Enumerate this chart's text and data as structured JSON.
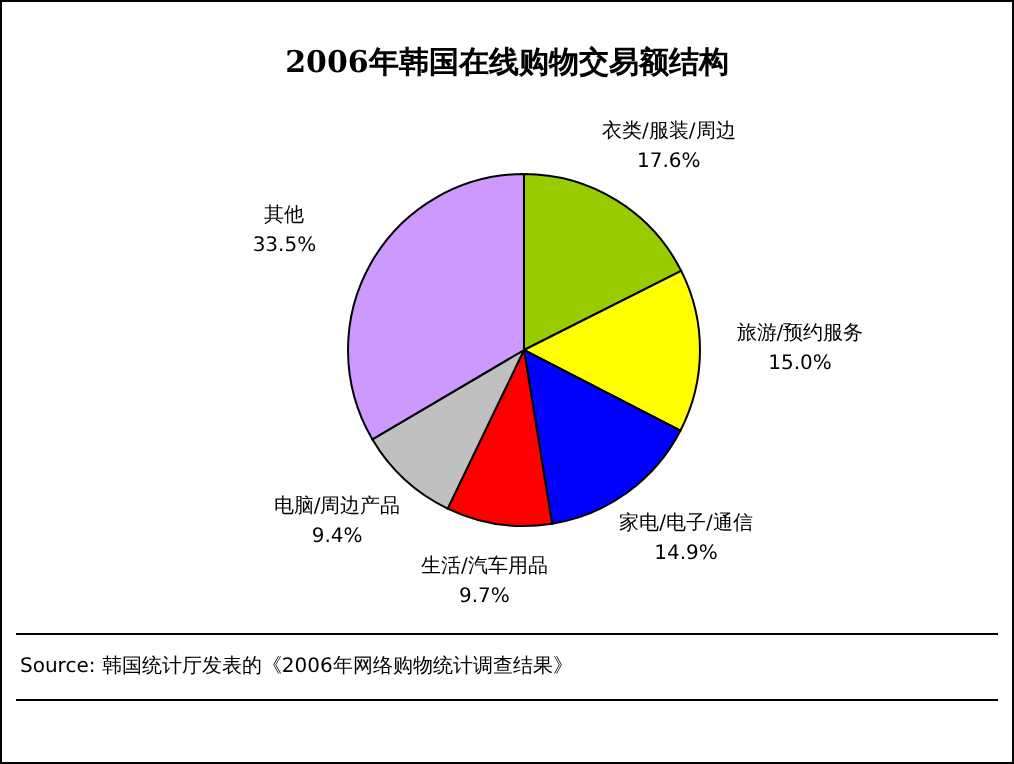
{
  "chart_data": {
    "type": "pie",
    "title": "2006年韩国在线购物交易额结构",
    "categories": [
      "衣类/服装/周边",
      "旅游/预约服务",
      "家电/电子/通信",
      "生活/汽车用品",
      "电脑/周边产品",
      "其他"
    ],
    "values": [
      17.6,
      15.0,
      14.9,
      9.7,
      9.4,
      33.5
    ],
    "value_labels": [
      "17.6%",
      "15.0%",
      "14.9%",
      "9.7%",
      "9.4%",
      "33.5%"
    ],
    "colors": [
      "#99cc00",
      "#ffff00",
      "#0000ff",
      "#ff0000",
      "#c0c0c0",
      "#cc99ff"
    ],
    "annotations": [
      "Source: 韩国统计厅发表的《2006年网络购物统计调查结果》"
    ],
    "legend": false
  }
}
